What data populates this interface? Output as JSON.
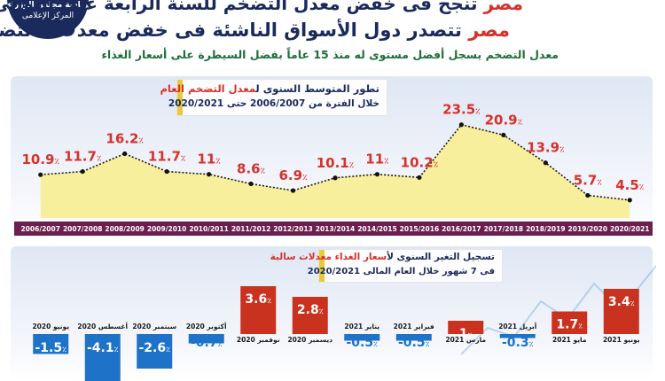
{
  "header": {
    "title_accent": "مصر",
    "title_rest": "تنجح فى خفض معدل التضخم للسنة الرابعة على التوالى",
    "subtitle_accent": "مصر",
    "subtitle_rest": "تتصدر دول الأسواق الناشئة فى خفض معدلات التضخم",
    "caption": "معدل التضخم يسجل أفضل مستوى له منذ 15 عاماً بفضل السيطرة على أسعار الغذاء",
    "logo_line1": "رئاسة مجلس الوزراء",
    "logo_line2": "المركز الإعلامى"
  },
  "chart_data": [
    {
      "type": "area",
      "title_rest": "تطور المتوسط السنوى ل",
      "title_accent": "معدل التضخم العام",
      "subtitle": "خلال الفترة من 2006/2007 حتى 2020/2021",
      "categories": [
        "2006/2007",
        "2007/2008",
        "2008/2009",
        "2009/2010",
        "2010/2011",
        "2011/2012",
        "2012/2013",
        "2013/2014",
        "2014/2015",
        "2015/2016",
        "2016/2017",
        "2017/2018",
        "2018/2019",
        "2019/2020",
        "2020/2021"
      ],
      "values": [
        10.9,
        11.7,
        16.2,
        11.7,
        11,
        8.6,
        6.9,
        10.1,
        11,
        10.2,
        23.5,
        20.9,
        13.9,
        5.7,
        4.5
      ],
      "labels": [
        "10.9",
        "11.7",
        "16.2",
        "11.7",
        "11",
        "8.6",
        "6.9",
        "10.1",
        "11",
        "10.2",
        "23.5",
        "20.9",
        "13.9",
        "5.7",
        "4.5"
      ],
      "unit": "٪",
      "colors": {
        "fill": "#f7ef9c",
        "line": "#1a1a1a",
        "value": "#d6312b",
        "axis_bar": "#6b1f4f",
        "axis_text": "#ffffff"
      },
      "ylim": [
        0,
        30
      ]
    },
    {
      "type": "bar",
      "title_rest": "تسجيل التغير السنوى ل",
      "title_accent": "أسعار الغذاء معدلات سالبة",
      "subtitle": "فى 7 شهور خلال العام المالى 2020/2021",
      "categories": [
        "يونيو 2020",
        "أغسطس 2020",
        "سبتمبر 2020",
        "أكتوبر 2020",
        "نوفمبر 2020",
        "ديسمبر 2020",
        "يناير 2021",
        "فبراير 2021",
        "مارس 2021",
        "أبريل 2021",
        "مايو 2021",
        "يونيو 2021"
      ],
      "values": [
        -1.5,
        -4.1,
        -2.6,
        -0.7,
        3.6,
        2.8,
        -0.5,
        -0.5,
        1,
        -0.3,
        1.7,
        3.4
      ],
      "labels": [
        "-1.5",
        "-4.1",
        "-2.6",
        "-0.7",
        "3.6",
        "2.8",
        "-0.5",
        "-0.5",
        "1",
        "-0.3",
        "1.7",
        "3.4"
      ],
      "unit": "٪",
      "colors": {
        "negative": "#1e72c8",
        "positive": "#c8321f",
        "label": "#ffffff",
        "category": "#1a1a1a"
      }
    }
  ]
}
